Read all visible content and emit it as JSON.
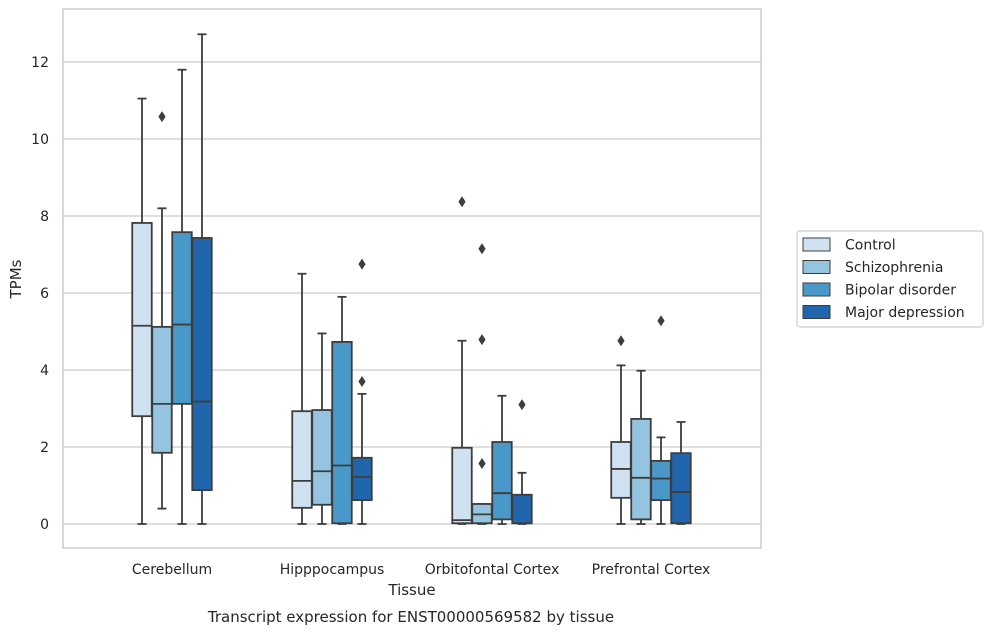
{
  "chart_data": {
    "type": "box",
    "title": "",
    "caption": "Transcript expression for ENST00000569582 by tissue",
    "xlabel": "Tissue",
    "ylabel": "TPMs",
    "ylim": [
      -0.6,
      13.4
    ],
    "yticks": [
      0,
      2,
      4,
      6,
      8,
      10,
      12
    ],
    "grid": "horizontal",
    "legend_position": "right",
    "categories": [
      "Cerebellum",
      "Hipppocampus",
      "Orbitofontal Cortex",
      "Prefrontal Cortex"
    ],
    "series": [
      {
        "name": "Control",
        "color": "#d0e1f2",
        "boxes": [
          {
            "min": 0,
            "q1": 2.8,
            "median": 5.15,
            "q3": 7.82,
            "max": 11.05,
            "outliers": []
          },
          {
            "min": 0,
            "q1": 0.42,
            "median": 1.12,
            "q3": 2.93,
            "max": 6.5,
            "outliers": []
          },
          {
            "min": 0,
            "q1": 0.02,
            "median": 0.1,
            "q3": 1.98,
            "max": 4.76,
            "outliers": [
              8.37
            ]
          },
          {
            "min": 0,
            "q1": 0.68,
            "median": 1.43,
            "q3": 2.13,
            "max": 4.12,
            "outliers": [
              4.76
            ]
          }
        ]
      },
      {
        "name": "Schizophrenia",
        "color": "#94c4df",
        "boxes": [
          {
            "min": 0.4,
            "q1": 1.85,
            "median": 3.12,
            "q3": 5.12,
            "max": 8.2,
            "outliers": [
              10.58
            ]
          },
          {
            "min": 0,
            "q1": 0.5,
            "median": 1.37,
            "q3": 2.96,
            "max": 4.95,
            "outliers": []
          },
          {
            "min": 0,
            "q1": 0.02,
            "median": 0.25,
            "q3": 0.52,
            "max": 0.52,
            "outliers": [
              1.57,
              4.79,
              7.15
            ]
          },
          {
            "min": 0,
            "q1": 0.12,
            "median": 1.2,
            "q3": 2.73,
            "max": 3.98,
            "outliers": []
          }
        ]
      },
      {
        "name": "Bipolar disorder",
        "color": "#4a98c9",
        "boxes": [
          {
            "min": 0,
            "q1": 3.12,
            "median": 5.18,
            "q3": 7.58,
            "max": 11.8,
            "outliers": []
          },
          {
            "min": 0,
            "q1": 0.02,
            "median": 1.52,
            "q3": 4.73,
            "max": 5.9,
            "outliers": []
          },
          {
            "min": 0,
            "q1": 0.12,
            "median": 0.8,
            "q3": 2.13,
            "max": 3.33,
            "outliers": []
          },
          {
            "min": 0,
            "q1": 0.62,
            "median": 1.18,
            "q3": 1.64,
            "max": 2.25,
            "outliers": [
              5.28
            ]
          }
        ]
      },
      {
        "name": "Major depression",
        "color": "#2166ac",
        "boxes": [
          {
            "min": 0,
            "q1": 0.88,
            "median": 3.18,
            "q3": 7.43,
            "max": 12.72,
            "outliers": []
          },
          {
            "min": 0,
            "q1": 0.62,
            "median": 1.22,
            "q3": 1.72,
            "max": 3.38,
            "outliers": [
              3.7,
              6.75
            ]
          },
          {
            "min": 0,
            "q1": 0.02,
            "median": 0.02,
            "q3": 0.76,
            "max": 1.33,
            "outliers": [
              3.1
            ]
          },
          {
            "min": 0,
            "q1": 0.02,
            "median": 0.83,
            "q3": 1.84,
            "max": 2.65,
            "outliers": []
          }
        ]
      }
    ]
  }
}
